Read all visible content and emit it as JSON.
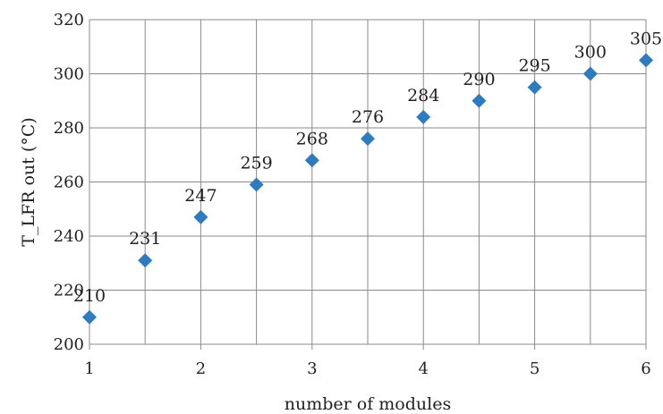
{
  "chart_data": {
    "type": "scatter",
    "title": "",
    "xlabel": "number of modules",
    "ylabel": "T_LFR out (°C)",
    "x": [
      1,
      1.5,
      2,
      2.5,
      3,
      3.5,
      4,
      4.5,
      5,
      5.5,
      6
    ],
    "y": [
      210,
      231,
      247,
      259,
      268,
      276,
      284,
      290,
      295,
      300,
      305
    ],
    "data_labels": [
      "210",
      "231",
      "247",
      "259",
      "268",
      "276",
      "284",
      "290",
      "295",
      "300",
      "305"
    ],
    "xlim": [
      1,
      6
    ],
    "ylim": [
      200,
      320
    ],
    "x_ticks": [
      1,
      2,
      3,
      4,
      5,
      6
    ],
    "x_tick_labels": [
      "1",
      "2",
      "3",
      "4",
      "5",
      "6"
    ],
    "y_ticks": [
      200,
      220,
      240,
      260,
      280,
      300,
      320
    ],
    "y_tick_labels": [
      "200",
      "220",
      "240",
      "260",
      "280",
      "300",
      "320"
    ],
    "x_minor_grid": [
      1.5,
      2.5,
      3.5,
      4.5,
      5.5
    ],
    "grid": true,
    "legend": "none",
    "marker": "diamond",
    "marker_color": "#2e7cbf"
  }
}
